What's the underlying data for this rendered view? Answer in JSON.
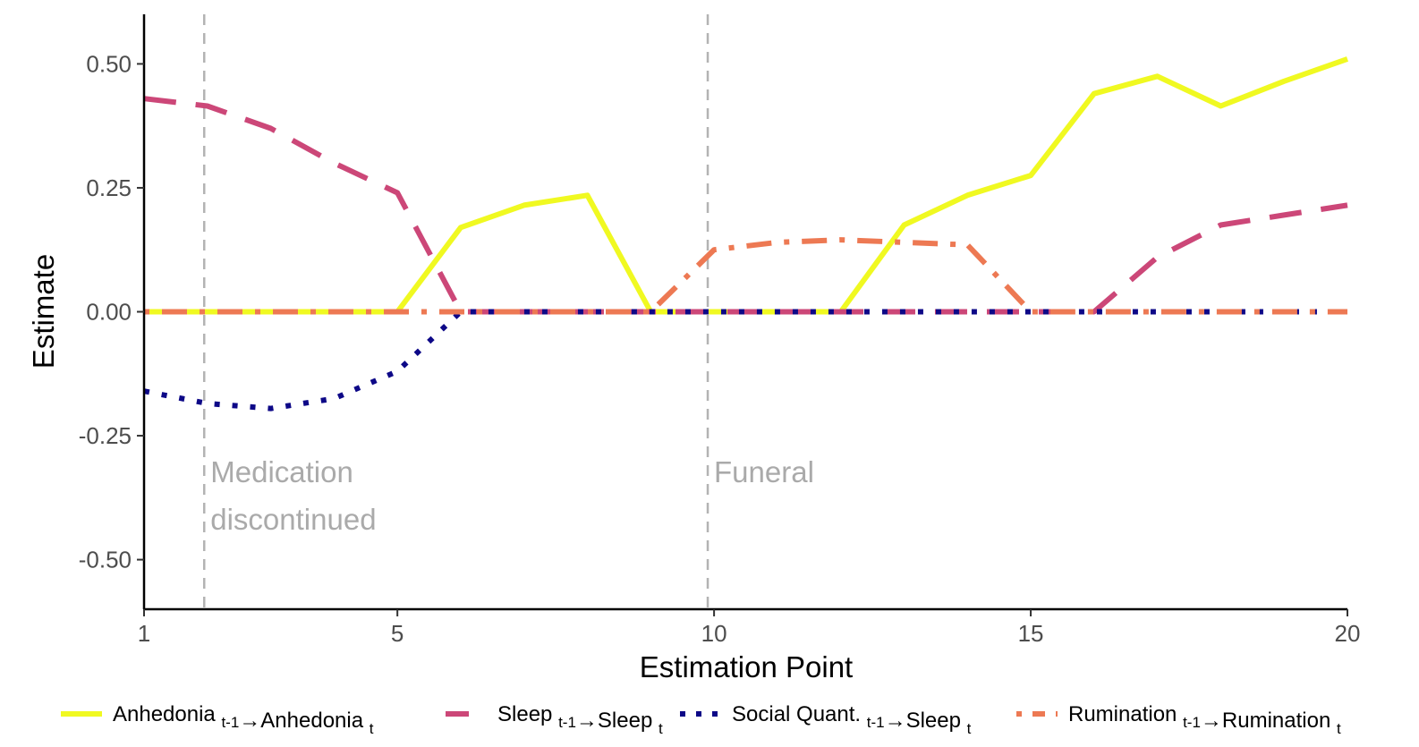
{
  "chart_data": {
    "type": "line",
    "xlabel": "Estimation Point",
    "ylabel": "Estimate",
    "xlim": [
      1,
      20
    ],
    "ylim": [
      -0.6,
      0.6
    ],
    "x_ticks": [
      1,
      5,
      10,
      15,
      20
    ],
    "y_ticks": [
      0.5,
      0.25,
      0.0,
      -0.25,
      -0.5
    ],
    "x_tick_labels": [
      "1",
      "5",
      "10",
      "15",
      "20"
    ],
    "y_tick_labels": [
      "0.50",
      "0.25",
      "0.00",
      "-0.25",
      "-0.50"
    ],
    "grid": false,
    "legend_position": "bottom",
    "x": [
      1,
      2,
      3,
      4,
      5,
      6,
      7,
      8,
      9,
      10,
      11,
      12,
      13,
      14,
      15,
      16,
      17,
      18,
      19,
      20
    ],
    "series": [
      {
        "label_main": "Anhedonia",
        "label_sub1": "t-1",
        "label_main2": "Anhedonia",
        "label_sub2": "t",
        "color": "#f0f921",
        "dash": "solid",
        "values": [
          0,
          0,
          0,
          0,
          0,
          0.17,
          0.215,
          0.235,
          0,
          0,
          0,
          0,
          0.175,
          0.235,
          0.275,
          0.44,
          0.475,
          0.415,
          0.465,
          0.51
        ]
      },
      {
        "label_main": "Sleep",
        "label_sub1": "t-1",
        "label_main2": "Sleep",
        "label_sub2": "t",
        "color": "#cc4778",
        "dash": "long",
        "values": [
          0.43,
          0.415,
          0.37,
          0.3,
          0.24,
          0,
          0,
          0,
          0,
          0,
          0,
          0,
          0,
          0,
          0,
          0,
          0.11,
          0.175,
          0.195,
          0.215
        ]
      },
      {
        "label_main": "Social Quant.",
        "label_sub1": "t-1",
        "label_main2": "Sleep",
        "label_sub2": "t",
        "color": "#0d0887",
        "dash": "dot",
        "values": [
          -0.16,
          -0.185,
          -0.195,
          -0.175,
          -0.12,
          0,
          0,
          0,
          0,
          0,
          0,
          0,
          0,
          0,
          0,
          0,
          0,
          0,
          0,
          0
        ]
      },
      {
        "label_main": "Rumination",
        "label_sub1": "t-1",
        "label_main2": "Rumination",
        "label_sub2": "t",
        "color": "#ed7953",
        "dash": "dotdash",
        "values": [
          0,
          0,
          0,
          0,
          0,
          0,
          0,
          0,
          0,
          0.125,
          0.14,
          0.145,
          0.14,
          0.135,
          0,
          0,
          0,
          0,
          0,
          0
        ]
      }
    ],
    "vlines": [
      {
        "x": 1.95,
        "label_line1": "Medication",
        "label_line2": "discontinued"
      },
      {
        "x": 9.9,
        "label_line1": "Funeral",
        "label_line2": ""
      }
    ],
    "arrow_glyph": "→"
  }
}
